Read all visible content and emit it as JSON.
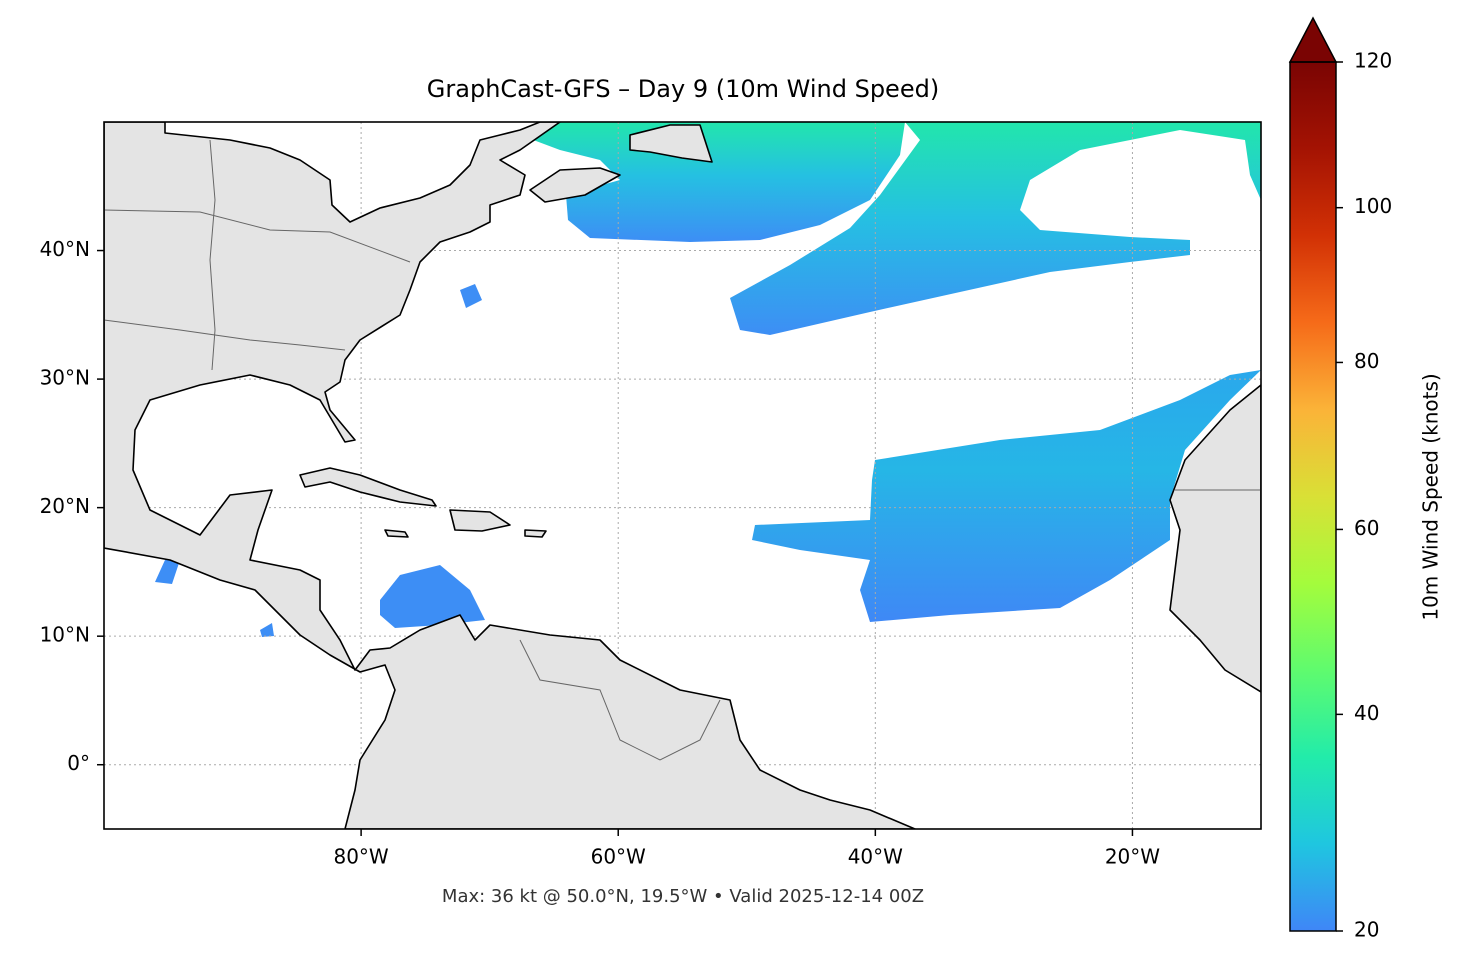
{
  "title": "GraphCast-GFS – Day 9 (10m Wind Speed)",
  "footer": "Max: 36 kt @ 50.0°N, 19.5°W • Valid 2025-12-14 00Z",
  "map": {
    "lonlim": [
      -100,
      -10
    ],
    "latlim": [
      -5,
      50
    ],
    "lonticks": [
      {
        "value": -80,
        "label": "80°W"
      },
      {
        "value": -60,
        "label": "60°W"
      },
      {
        "value": -40,
        "label": "40°W"
      },
      {
        "value": -20,
        "label": "20°W"
      }
    ],
    "latticks": [
      {
        "value": 0,
        "label": "0°"
      },
      {
        "value": 10,
        "label": "10°N"
      },
      {
        "value": 20,
        "label": "20°N"
      },
      {
        "value": 30,
        "label": "30°N"
      },
      {
        "value": 40,
        "label": "40°N"
      }
    ],
    "grid": true
  },
  "colorbar": {
    "label": "10m Wind Speed (knots)",
    "lim": [
      20,
      120
    ],
    "ticks": [
      20,
      40,
      60,
      80,
      100,
      120
    ],
    "gamma": 0.7,
    "colors": [
      "#3f86f7",
      "#1fc6e0",
      "#22ecaa",
      "#5ffb6e",
      "#a4fc3c",
      "#d9e036",
      "#fbb338",
      "#f66b19",
      "#d23105",
      "#a41303",
      "#7a0403"
    ],
    "extend": "max"
  }
}
